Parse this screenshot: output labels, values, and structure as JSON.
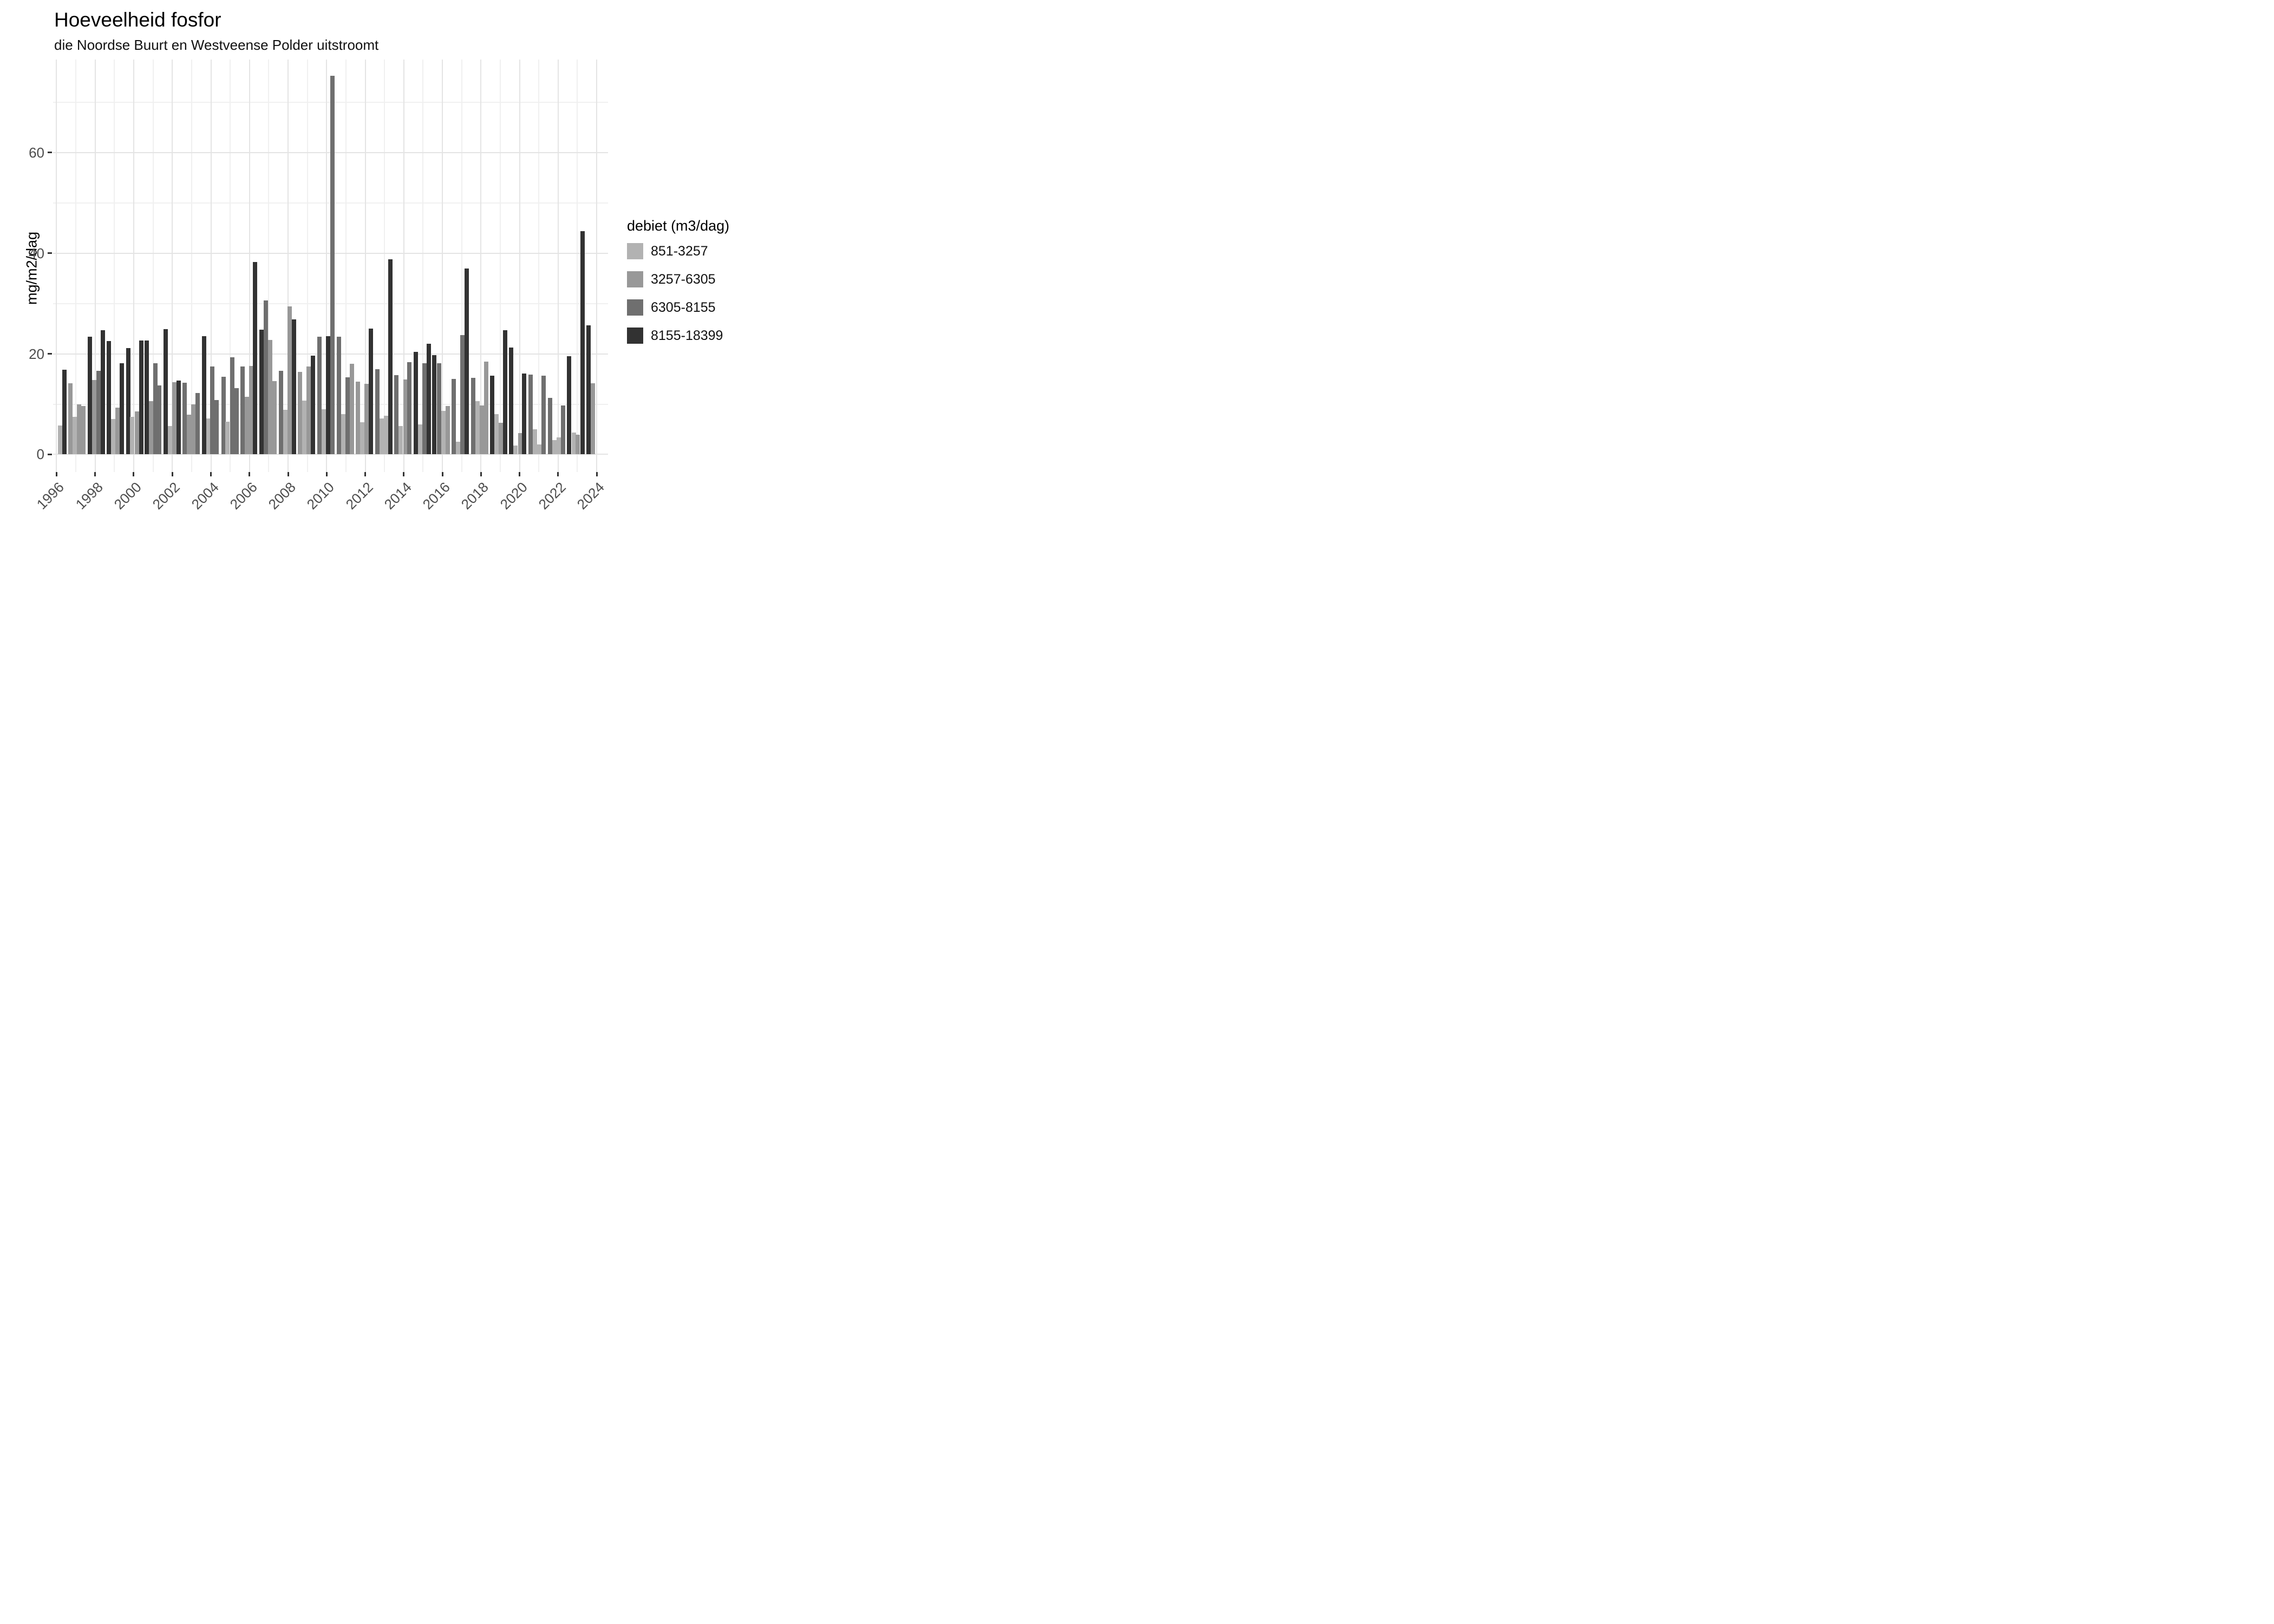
{
  "header": {
    "title": "Hoeveelheid fosfor",
    "subtitle": "die Noordse Buurt en Westveense Polder uitstroomt"
  },
  "chart_data": {
    "type": "bar",
    "title": "Hoeveelheid fosfor",
    "subtitle": "die Noordse Buurt en Westveense Polder uitstroomt",
    "xlabel": "",
    "ylabel": "mg/m2/dag",
    "ylim": [
      -3.5,
      78.5
    ],
    "yticks": [
      0,
      20,
      40,
      60
    ],
    "yminor": [
      10,
      30,
      50,
      70
    ],
    "xticks": [
      1996,
      1998,
      2000,
      2002,
      2004,
      2006,
      2008,
      2010,
      2012,
      2014,
      2016,
      2018,
      2020,
      2022,
      2024
    ],
    "xminor": [
      1997,
      1999,
      2001,
      2003,
      2005,
      2007,
      2009,
      2011,
      2013,
      2015,
      2017,
      2019,
      2021,
      2023
    ],
    "x_domain": [
      1995.818,
      2024.588
    ],
    "grid": "on",
    "legend_position": "right",
    "legend_title": "debiet (m3/dag)",
    "categories": [
      {
        "label": "851-3257",
        "color": "#b2b2b2"
      },
      {
        "label": "3257-6305",
        "color": "#989898"
      },
      {
        "label": "6305-8155",
        "color": "#6f6f6f"
      },
      {
        "label": "8155-18399",
        "color": "#323232"
      }
    ],
    "bars_format": [
      "x_year",
      "value_mg_m2_dag",
      "category_index"
    ],
    "bars": [
      [
        1996.19,
        5.8,
        0
      ],
      [
        1996.42,
        16.8,
        3
      ],
      [
        1996.73,
        14.1,
        1
      ],
      [
        1996.95,
        7.5,
        0
      ],
      [
        1997.17,
        10.0,
        1
      ],
      [
        1997.4,
        9.6,
        1
      ],
      [
        1997.72,
        23.4,
        3
      ],
      [
        1997.94,
        14.8,
        1
      ],
      [
        1998.17,
        16.6,
        2
      ],
      [
        1998.4,
        24.7,
        3
      ],
      [
        1998.72,
        22.5,
        3
      ],
      [
        1998.94,
        7.0,
        0
      ],
      [
        1999.17,
        9.3,
        1
      ],
      [
        1999.38,
        18.1,
        3
      ],
      [
        1999.71,
        21.1,
        3
      ],
      [
        1999.93,
        7.5,
        0
      ],
      [
        2000.16,
        8.5,
        1
      ],
      [
        2000.38,
        22.6,
        3
      ],
      [
        2000.68,
        22.6,
        3
      ],
      [
        2000.9,
        10.6,
        1
      ],
      [
        2001.11,
        18.1,
        2
      ],
      [
        2001.33,
        13.7,
        2
      ],
      [
        2001.66,
        24.9,
        3
      ],
      [
        2001.88,
        5.6,
        0
      ],
      [
        2002.1,
        14.4,
        1
      ],
      [
        2002.32,
        14.7,
        3
      ],
      [
        2002.64,
        14.3,
        2
      ],
      [
        2002.86,
        7.9,
        1
      ],
      [
        2003.08,
        10.0,
        1
      ],
      [
        2003.32,
        12.2,
        2
      ],
      [
        2003.64,
        23.5,
        3
      ],
      [
        2003.86,
        7.2,
        0
      ],
      [
        2004.08,
        17.5,
        2
      ],
      [
        2004.3,
        10.8,
        2
      ],
      [
        2004.65,
        15.4,
        2
      ],
      [
        2004.87,
        6.5,
        0
      ],
      [
        2005.1,
        19.3,
        2
      ],
      [
        2005.32,
        13.2,
        2
      ],
      [
        2005.64,
        17.5,
        2
      ],
      [
        2005.86,
        11.5,
        1
      ],
      [
        2006.08,
        17.6,
        1
      ],
      [
        2006.3,
        38.3,
        3
      ],
      [
        2006.62,
        24.8,
        3
      ],
      [
        2006.85,
        30.6,
        2
      ],
      [
        2007.08,
        22.8,
        1
      ],
      [
        2007.3,
        14.6,
        1
      ],
      [
        2007.63,
        16.6,
        2
      ],
      [
        2007.85,
        8.9,
        0
      ],
      [
        2008.08,
        29.4,
        1
      ],
      [
        2008.3,
        26.8,
        3
      ],
      [
        2008.62,
        16.4,
        1
      ],
      [
        2008.85,
        10.7,
        0
      ],
      [
        2009.07,
        17.5,
        1
      ],
      [
        2009.3,
        19.6,
        3
      ],
      [
        2009.62,
        23.4,
        2
      ],
      [
        2009.84,
        9.0,
        0
      ],
      [
        2010.07,
        23.5,
        3
      ],
      [
        2010.29,
        75.3,
        2
      ],
      [
        2010.63,
        23.4,
        2
      ],
      [
        2010.86,
        8.0,
        0
      ],
      [
        2011.08,
        15.3,
        2
      ],
      [
        2011.3,
        18.0,
        1
      ],
      [
        2011.63,
        14.5,
        1
      ],
      [
        2011.85,
        6.4,
        0
      ],
      [
        2012.08,
        14.0,
        1
      ],
      [
        2012.3,
        25.0,
        3
      ],
      [
        2012.63,
        17.0,
        2
      ],
      [
        2012.85,
        7.1,
        0
      ],
      [
        2013.08,
        7.7,
        0
      ],
      [
        2013.3,
        38.8,
        3
      ],
      [
        2013.62,
        15.8,
        2
      ],
      [
        2013.85,
        5.7,
        0
      ],
      [
        2014.08,
        14.9,
        1
      ],
      [
        2014.3,
        18.3,
        2
      ],
      [
        2014.63,
        20.4,
        3
      ],
      [
        2014.85,
        6.0,
        0
      ],
      [
        2015.08,
        18.1,
        2
      ],
      [
        2015.3,
        22.0,
        3
      ],
      [
        2015.59,
        19.7,
        3
      ],
      [
        2015.82,
        18.1,
        2
      ],
      [
        2016.05,
        8.7,
        0
      ],
      [
        2016.27,
        9.6,
        1
      ],
      [
        2016.6,
        15.0,
        2
      ],
      [
        2016.82,
        2.5,
        0
      ],
      [
        2017.05,
        23.7,
        2
      ],
      [
        2017.27,
        37.0,
        3
      ],
      [
        2017.59,
        15.2,
        2
      ],
      [
        2017.82,
        10.6,
        0
      ],
      [
        2018.04,
        9.7,
        1
      ],
      [
        2018.26,
        18.5,
        1
      ],
      [
        2018.58,
        15.7,
        3
      ],
      [
        2018.8,
        8.0,
        0
      ],
      [
        2019.03,
        6.3,
        1
      ],
      [
        2019.26,
        24.7,
        3
      ],
      [
        2019.57,
        21.2,
        3
      ],
      [
        2019.8,
        1.8,
        0
      ],
      [
        2020.03,
        4.2,
        1
      ],
      [
        2020.25,
        16.1,
        3
      ],
      [
        2020.57,
        15.9,
        2
      ],
      [
        2020.8,
        5.0,
        0
      ],
      [
        2021.03,
        2.0,
        0
      ],
      [
        2021.25,
        15.7,
        2
      ],
      [
        2021.58,
        11.2,
        2
      ],
      [
        2021.81,
        2.9,
        0
      ],
      [
        2022.03,
        3.4,
        0
      ],
      [
        2022.25,
        9.7,
        2
      ],
      [
        2022.58,
        19.5,
        3
      ],
      [
        2022.81,
        4.4,
        0
      ],
      [
        2023.03,
        3.9,
        1
      ],
      [
        2023.26,
        44.4,
        3
      ],
      [
        2023.58,
        25.7,
        3
      ],
      [
        2023.81,
        14.1,
        1
      ]
    ]
  }
}
